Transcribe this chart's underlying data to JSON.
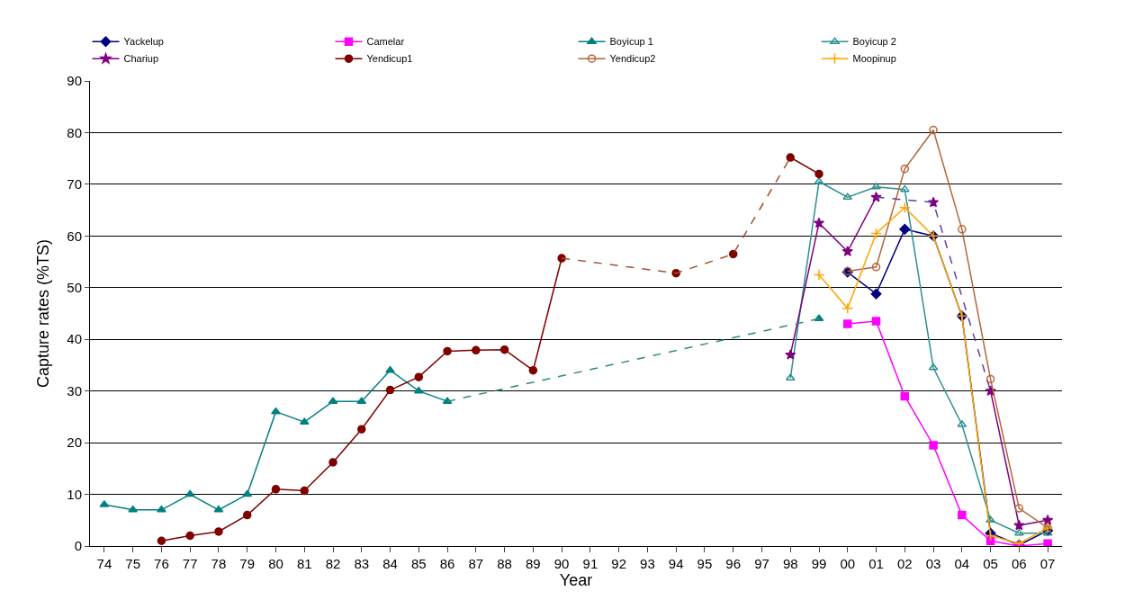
{
  "chart_data": {
    "type": "line",
    "xlabel": "Year",
    "ylabel": "Capture rates (%TS)",
    "categories": [
      "74",
      "75",
      "76",
      "77",
      "78",
      "79",
      "80",
      "81",
      "82",
      "83",
      "84",
      "85",
      "86",
      "87",
      "88",
      "89",
      "90",
      "91",
      "92",
      "93",
      "94",
      "95",
      "96",
      "97",
      "98",
      "99",
      "00",
      "01",
      "02",
      "03",
      "04",
      "05",
      "06",
      "07"
    ],
    "ylim": [
      0,
      90
    ],
    "yticks": [
      0,
      10,
      20,
      30,
      40,
      50,
      60,
      70,
      80,
      90
    ],
    "grid": "y",
    "legend": "top",
    "line_style": "solid",
    "series": [
      {
        "name": "Yackelup",
        "color": "#000080",
        "marker": "diamond",
        "values": [
          null,
          null,
          null,
          null,
          null,
          null,
          null,
          null,
          null,
          null,
          null,
          null,
          null,
          null,
          null,
          null,
          null,
          null,
          null,
          null,
          null,
          null,
          null,
          null,
          null,
          null,
          53,
          48.8,
          61.3,
          60,
          44.5,
          2.5,
          0.2,
          3
        ]
      },
      {
        "name": "Camelar",
        "color": "#ff00ff",
        "marker": "square",
        "values": [
          null,
          null,
          null,
          null,
          null,
          null,
          null,
          null,
          null,
          null,
          null,
          null,
          null,
          null,
          null,
          null,
          null,
          null,
          null,
          null,
          null,
          null,
          null,
          null,
          null,
          null,
          43,
          43.5,
          29,
          19.5,
          6,
          1,
          0,
          0.5
        ]
      },
      {
        "name": "Boyicup 1",
        "color": "#008080",
        "marker": "triangle",
        "values": [
          8,
          7,
          7,
          10,
          7,
          10,
          26,
          24,
          28,
          28,
          34,
          30,
          28,
          null,
          null,
          null,
          null,
          null,
          null,
          null,
          null,
          null,
          null,
          null,
          null,
          44,
          null,
          null,
          null,
          null,
          null,
          null,
          null,
          null
        ]
      },
      {
        "name": "Boyicup 2",
        "color": "#2e9090",
        "marker": "triangle-open",
        "values": [
          null,
          null,
          null,
          null,
          null,
          null,
          null,
          null,
          null,
          null,
          null,
          null,
          null,
          null,
          null,
          null,
          null,
          null,
          null,
          null,
          null,
          null,
          null,
          null,
          32.5,
          70.5,
          67.5,
          69.5,
          69,
          34.5,
          23.5,
          5,
          2.5,
          2.5
        ]
      },
      {
        "name": "Chariup",
        "color": "#800080",
        "marker": "star",
        "values": [
          null,
          null,
          null,
          null,
          null,
          null,
          null,
          null,
          null,
          null,
          null,
          null,
          null,
          null,
          null,
          null,
          null,
          null,
          null,
          null,
          null,
          null,
          null,
          null,
          37,
          62.5,
          57,
          67.5,
          null,
          66.5,
          null,
          30,
          4,
          5
        ]
      },
      {
        "name": "Yendicup1",
        "color": "#800000",
        "marker": "circle",
        "values": [
          null,
          null,
          1,
          2,
          2.8,
          6,
          11,
          10.7,
          16.2,
          22.6,
          30.2,
          32.7,
          37.7,
          37.9,
          38,
          34,
          55.7,
          null,
          null,
          null,
          52.8,
          null,
          56.5,
          null,
          75.2,
          72,
          null,
          null,
          null,
          null,
          null,
          null,
          null,
          null
        ]
      },
      {
        "name": "Yendicup2",
        "color": "#b5653a",
        "marker": "circle-open",
        "values": [
          null,
          null,
          null,
          null,
          null,
          null,
          null,
          null,
          null,
          null,
          null,
          null,
          null,
          null,
          null,
          null,
          null,
          null,
          null,
          null,
          null,
          null,
          null,
          null,
          null,
          null,
          53.2,
          54,
          73,
          80.5,
          61.3,
          32.3,
          7.3,
          3.5
        ]
      },
      {
        "name": "Moopinup",
        "color": "#ffa500",
        "marker": "cross",
        "values": [
          null,
          null,
          null,
          null,
          null,
          null,
          null,
          null,
          null,
          null,
          null,
          null,
          null,
          null,
          null,
          null,
          null,
          null,
          null,
          null,
          null,
          null,
          null,
          null,
          null,
          52.5,
          46,
          60.5,
          65.5,
          60,
          44.5,
          2,
          0.5,
          3.5
        ]
      },
      {
        "color": "#2e8b7a",
        "marker": "none",
        "line_style": "dashed",
        "values": [
          null,
          null,
          null,
          null,
          null,
          null,
          null,
          null,
          null,
          null,
          null,
          null,
          28,
          null,
          null,
          null,
          null,
          null,
          null,
          null,
          null,
          null,
          null,
          null,
          null,
          44,
          null,
          null,
          null,
          null,
          null,
          null,
          null,
          null
        ]
      },
      {
        "color": "#a0522d",
        "marker": "none",
        "line_style": "dashed",
        "values": [
          null,
          null,
          null,
          null,
          null,
          null,
          null,
          null,
          null,
          null,
          null,
          null,
          null,
          null,
          null,
          null,
          55.7,
          null,
          null,
          null,
          52.8,
          null,
          56.5,
          null,
          75.2,
          null,
          null,
          null,
          null,
          null,
          null,
          null,
          null,
          null
        ]
      },
      {
        "color": "#6a3d9a",
        "marker": "none",
        "line_style": "dashed",
        "values": [
          null,
          null,
          null,
          null,
          null,
          null,
          null,
          null,
          null,
          null,
          null,
          null,
          null,
          null,
          null,
          null,
          null,
          null,
          null,
          null,
          null,
          null,
          null,
          null,
          null,
          null,
          null,
          67.5,
          null,
          66.5,
          null,
          30,
          null,
          null
        ]
      }
    ]
  }
}
